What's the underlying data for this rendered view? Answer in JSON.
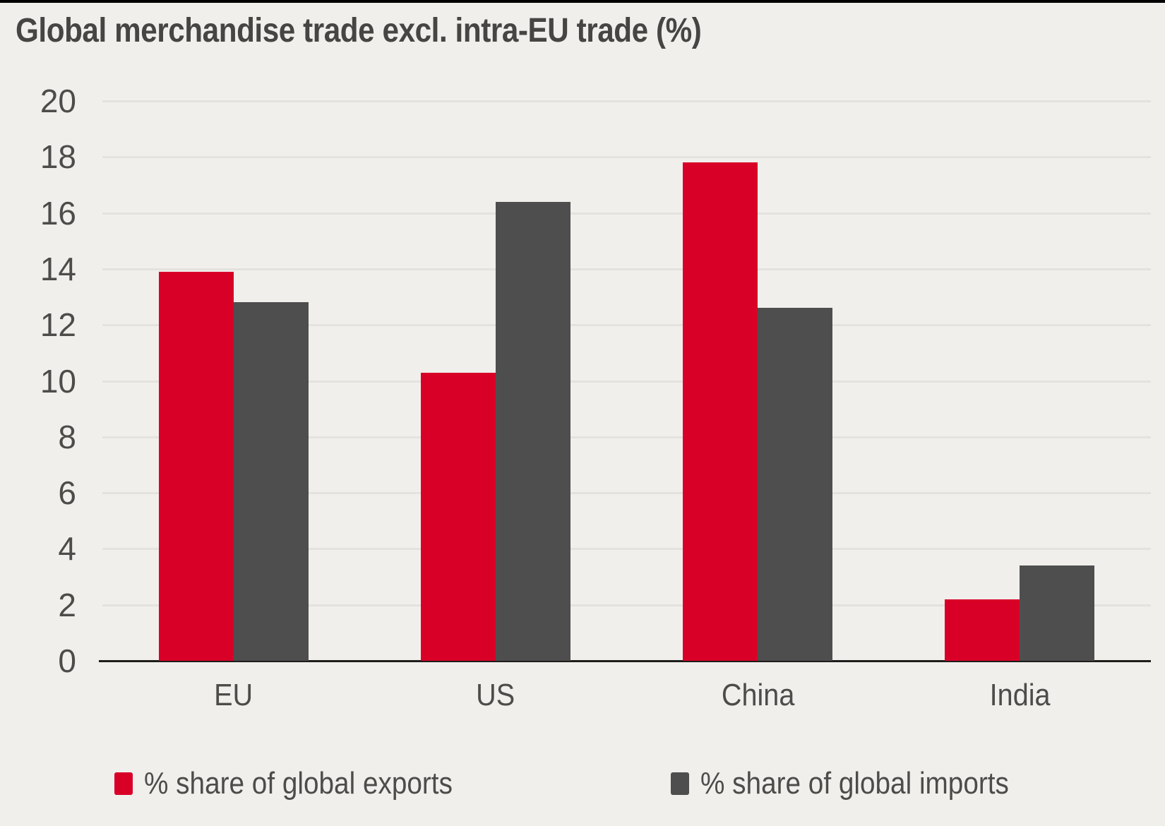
{
  "page_title": "Global merchandise trade excl. intra-EU trade (%)",
  "chart_data": {
    "type": "bar",
    "title": "Global merchandise trade excl. intra-EU trade (%)",
    "categories": [
      "EU",
      "US",
      "China",
      "India"
    ],
    "series": [
      {
        "name": "% share of global exports",
        "key": "exports",
        "color": "#d90028",
        "values": [
          13.9,
          10.3,
          17.8,
          2.2
        ]
      },
      {
        "name": "% share of global imports",
        "key": "imports",
        "color": "#4f4e4e",
        "values": [
          12.8,
          16.4,
          12.6,
          3.4
        ]
      }
    ],
    "xlabel": "",
    "ylabel": "",
    "ylim": [
      0,
      20
    ],
    "yticks": [
      0,
      2,
      4,
      6,
      8,
      10,
      12,
      14,
      16,
      18,
      20
    ],
    "grid": "horizontal",
    "legend_position": "bottom"
  },
  "colors": {
    "background": "#f1efec",
    "top_rule": "#000000",
    "grid_line": "#e4e2df",
    "axis_line": "#1d1d1b",
    "text": "#4e4c4a",
    "title_text": "#474543"
  }
}
